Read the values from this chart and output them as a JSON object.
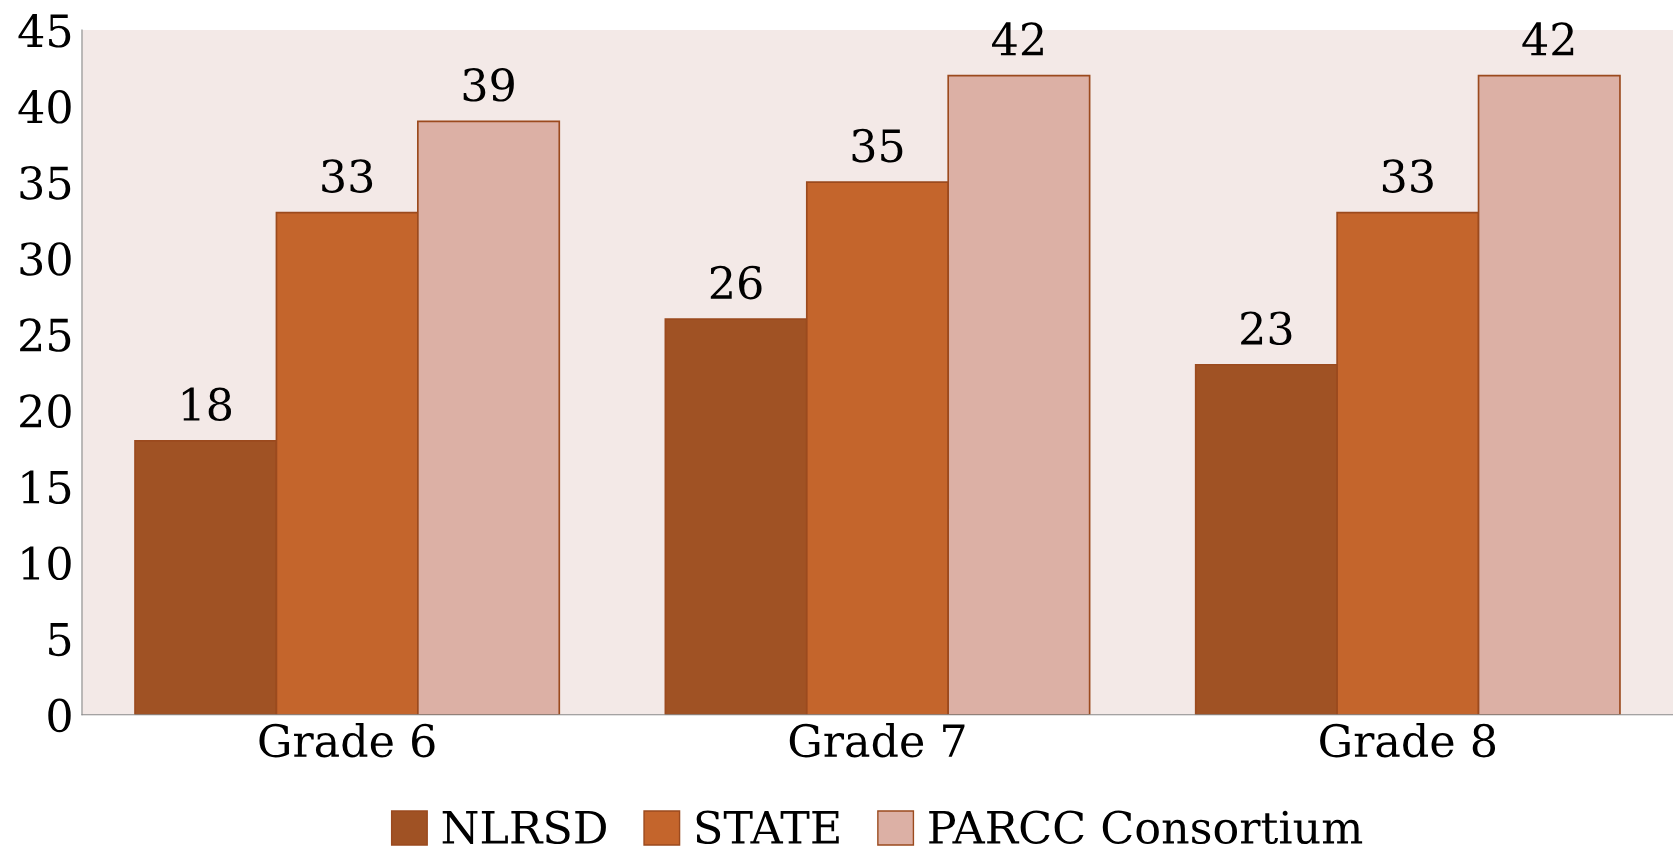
{
  "chart_data": {
    "type": "bar",
    "categories": [
      "Grade 6",
      "Grade 7",
      "Grade 8"
    ],
    "series": [
      {
        "name": "NLRSD",
        "color": "#a05224",
        "values": [
          18,
          26,
          23
        ]
      },
      {
        "name": "STATE",
        "color": "#c4652c",
        "values": [
          33,
          35,
          33
        ]
      },
      {
        "name": "PARCC Consortium",
        "color": "#dcb0a5",
        "values": [
          39,
          42,
          42
        ]
      }
    ],
    "ylim": [
      0,
      45
    ],
    "yticks": [
      0,
      5,
      10,
      15,
      20,
      25,
      30,
      35,
      40,
      45
    ],
    "data_labels": true,
    "grid": false,
    "legend": "bottom"
  }
}
